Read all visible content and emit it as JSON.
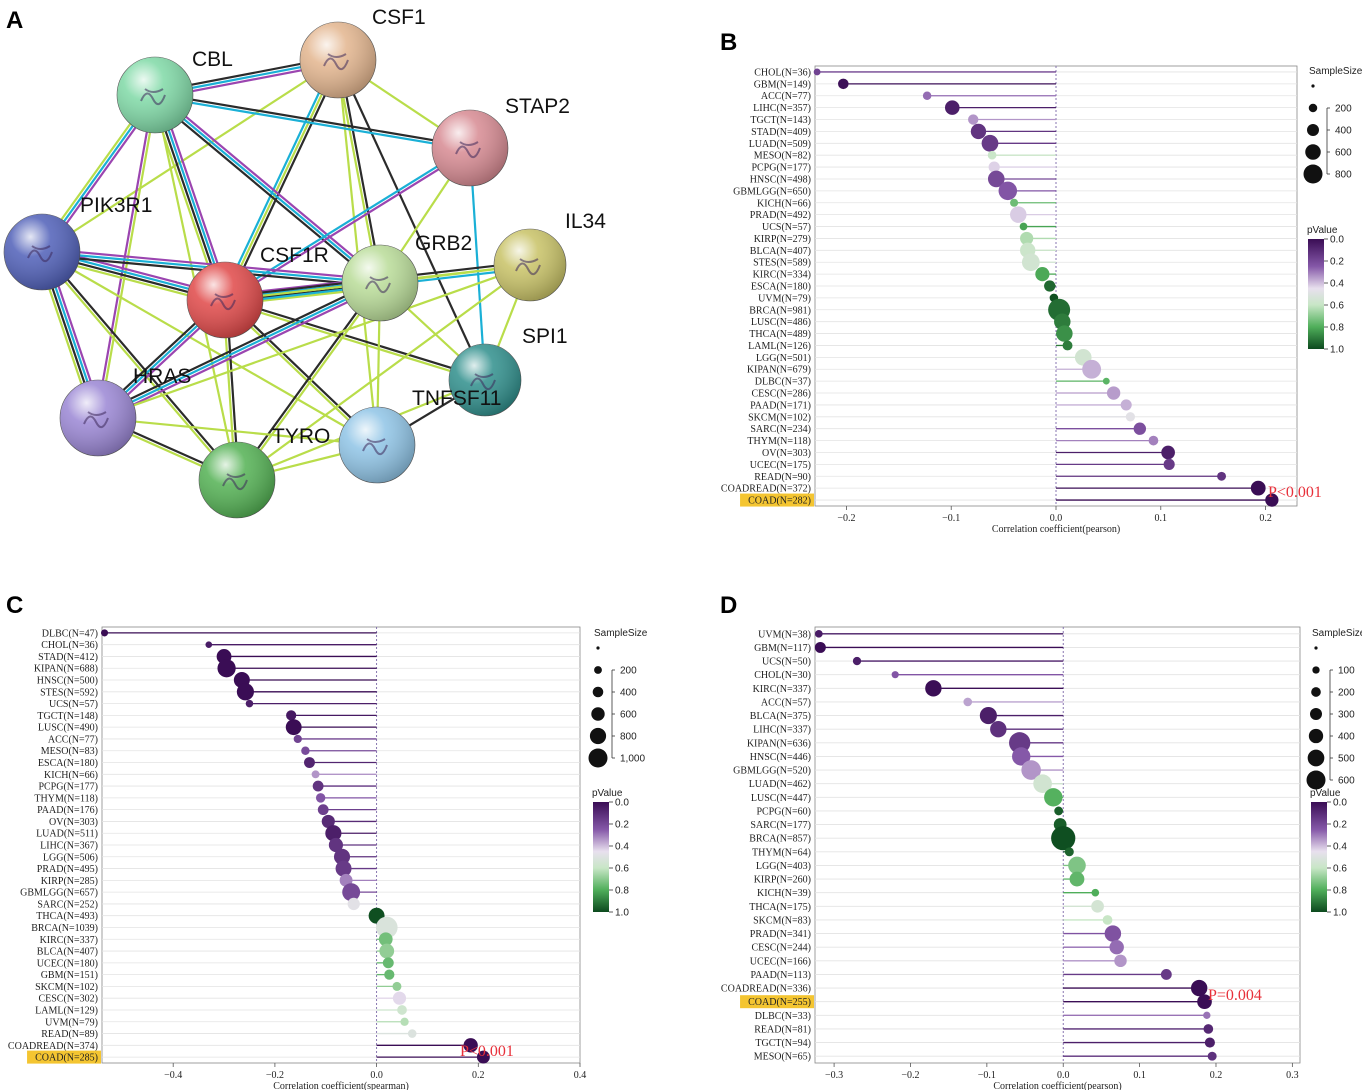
{
  "figure": {
    "panel_letters": {
      "a": "A",
      "b": "B",
      "c": "C",
      "d": "D"
    },
    "network": {
      "nodes": [
        {
          "id": "CSF1",
          "label": "CSF1",
          "color": "#e3b58e"
        },
        {
          "id": "CBL",
          "label": "CBL",
          "color": "#7fd9a6"
        },
        {
          "id": "STAP2",
          "label": "STAP2",
          "color": "#d78a92"
        },
        {
          "id": "PIK3R1",
          "label": "PIK3R1",
          "color": "#4f5fb8"
        },
        {
          "id": "CSF1R",
          "label": "CSF1R",
          "color": "#e04848"
        },
        {
          "id": "GRB2",
          "label": "GRB2",
          "color": "#b9dc98"
        },
        {
          "id": "IL34",
          "label": "IL34",
          "color": "#c8c266"
        },
        {
          "id": "SPI1",
          "label": "SPI1",
          "color": "#2f8f8c"
        },
        {
          "id": "HRAS",
          "label": "HRAS",
          "color": "#9a86d4"
        },
        {
          "id": "TNFSF11",
          "label": "TNFSF11",
          "color": "#8fc4e6"
        },
        {
          "id": "TYRO",
          "label": "TYRO",
          "color": "#53b153"
        }
      ],
      "edge_colors": {
        "black": "#2b2b2b",
        "cyan": "#1ab0d6",
        "purple": "#9b45b0",
        "green": "#b9dd4a"
      }
    }
  },
  "chart_data": [
    {
      "panel": "B",
      "type": "lollipop",
      "xlabel": "Correlation coefficient(pearson)",
      "xlim": [
        -0.23,
        0.23
      ],
      "xticks": [
        -0.2,
        -0.1,
        0.0,
        0.1,
        0.2
      ],
      "xtick_labels": [
        "−0.2",
        "−0.1",
        "0.0",
        "0.1",
        "0.2"
      ],
      "annotation": "P<0.001",
      "highlight": "COAD(N=282)",
      "size_legend": {
        "title": "SampleSize",
        "labels": [
          "200",
          "400",
          "600",
          "800"
        ]
      },
      "color_legend": {
        "title": "pValue",
        "labels": [
          "0.0",
          "0.2",
          "0.4",
          "0.6",
          "0.8",
          "1.0"
        ]
      },
      "rows": [
        {
          "label": "CHOL(N=36)",
          "n": 36,
          "r": -0.228,
          "p": 0.18
        },
        {
          "label": "GBM(N=149)",
          "n": 149,
          "r": -0.203,
          "p": 0.01
        },
        {
          "label": "ACC(N=77)",
          "n": 77,
          "r": -0.123,
          "p": 0.28
        },
        {
          "label": "LIHC(N=357)",
          "n": 357,
          "r": -0.099,
          "p": 0.06
        },
        {
          "label": "TGCT(N=143)",
          "n": 143,
          "r": -0.079,
          "p": 0.34
        },
        {
          "label": "STAD(N=409)",
          "n": 409,
          "r": -0.074,
          "p": 0.13
        },
        {
          "label": "LUAD(N=509)",
          "n": 509,
          "r": -0.063,
          "p": 0.15
        },
        {
          "label": "MESO(N=82)",
          "n": 82,
          "r": -0.061,
          "p": 0.59
        },
        {
          "label": "PCPG(N=177)",
          "n": 177,
          "r": -0.059,
          "p": 0.43
        },
        {
          "label": "HNSC(N=498)",
          "n": 498,
          "r": -0.057,
          "p": 0.2
        },
        {
          "label": "GBMLGG(N=650)",
          "n": 650,
          "r": -0.046,
          "p": 0.24
        },
        {
          "label": "KICH(N=66)",
          "n": 66,
          "r": -0.04,
          "p": 0.75
        },
        {
          "label": "PRAD(N=492)",
          "n": 492,
          "r": -0.036,
          "p": 0.42
        },
        {
          "label": "UCS(N=57)",
          "n": 57,
          "r": -0.031,
          "p": 0.82
        },
        {
          "label": "KIRP(N=279)",
          "n": 279,
          "r": -0.028,
          "p": 0.64
        },
        {
          "label": "BLCA(N=407)",
          "n": 407,
          "r": -0.027,
          "p": 0.58
        },
        {
          "label": "STES(N=589)",
          "n": 589,
          "r": -0.024,
          "p": 0.56
        },
        {
          "label": "KIRC(N=334)",
          "n": 334,
          "r": -0.013,
          "p": 0.81
        },
        {
          "label": "ESCA(N=180)",
          "n": 180,
          "r": -0.006,
          "p": 0.94
        },
        {
          "label": "UVM(N=79)",
          "n": 79,
          "r": -0.002,
          "p": 0.99
        },
        {
          "label": "BRCA(N=981)",
          "n": 981,
          "r": 0.003,
          "p": 0.93
        },
        {
          "label": "LUSC(N=486)",
          "n": 486,
          "r": 0.006,
          "p": 0.9
        },
        {
          "label": "THCA(N=489)",
          "n": 489,
          "r": 0.008,
          "p": 0.86
        },
        {
          "label": "LAML(N=126)",
          "n": 126,
          "r": 0.011,
          "p": 0.9
        },
        {
          "label": "LGG(N=501)",
          "n": 501,
          "r": 0.026,
          "p": 0.56
        },
        {
          "label": "KIPAN(N=679)",
          "n": 679,
          "r": 0.034,
          "p": 0.38
        },
        {
          "label": "DLBC(N=37)",
          "n": 37,
          "r": 0.048,
          "p": 0.78
        },
        {
          "label": "CESC(N=286)",
          "n": 286,
          "r": 0.055,
          "p": 0.35
        },
        {
          "label": "PAAD(N=171)",
          "n": 171,
          "r": 0.067,
          "p": 0.38
        },
        {
          "label": "SKCM(N=102)",
          "n": 102,
          "r": 0.071,
          "p": 0.48
        },
        {
          "label": "SARC(N=234)",
          "n": 234,
          "r": 0.08,
          "p": 0.22
        },
        {
          "label": "THYM(N=118)",
          "n": 118,
          "r": 0.093,
          "p": 0.31
        },
        {
          "label": "OV(N=303)",
          "n": 303,
          "r": 0.107,
          "p": 0.06
        },
        {
          "label": "UCEC(N=175)",
          "n": 175,
          "r": 0.108,
          "p": 0.15
        },
        {
          "label": "READ(N=90)",
          "n": 90,
          "r": 0.158,
          "p": 0.13
        },
        {
          "label": "COADREAD(N=372)",
          "n": 372,
          "r": 0.193,
          "p": 0.0002
        },
        {
          "label": "COAD(N=282)",
          "n": 282,
          "r": 0.206,
          "p": 0.0005
        }
      ]
    },
    {
      "panel": "C",
      "type": "lollipop",
      "xlabel": "Correlation coefficient(spearman)",
      "xlim": [
        -0.54,
        0.4
      ],
      "xticks": [
        -0.4,
        -0.2,
        0.0,
        0.2,
        0.4
      ],
      "xtick_labels": [
        "−0.4",
        "−0.2",
        "0.0",
        "0.2",
        "0.4"
      ],
      "annotation": "P<0.001",
      "highlight": "COAD(N=285)",
      "size_legend": {
        "title": "SampleSize",
        "labels": [
          "200",
          "400",
          "600",
          "800",
          "1,000"
        ]
      },
      "color_legend": {
        "title": "pValue",
        "labels": [
          "0.0",
          "0.2",
          "0.4",
          "0.6",
          "0.8",
          "1.0"
        ]
      },
      "rows": [
        {
          "label": "DLBC(N=47)",
          "n": 47,
          "r": -0.535,
          "p": 0.0001
        },
        {
          "label": "CHOL(N=36)",
          "n": 36,
          "r": -0.33,
          "p": 0.05
        },
        {
          "label": "STAD(N=412)",
          "n": 412,
          "r": -0.3,
          "p": 0.0
        },
        {
          "label": "KIPAN(N=688)",
          "n": 688,
          "r": -0.295,
          "p": 0.0
        },
        {
          "label": "HNSC(N=500)",
          "n": 500,
          "r": -0.265,
          "p": 0.0
        },
        {
          "label": "STES(N=592)",
          "n": 592,
          "r": -0.258,
          "p": 0.0
        },
        {
          "label": "UCS(N=57)",
          "n": 57,
          "r": -0.25,
          "p": 0.06
        },
        {
          "label": "TGCT(N=148)",
          "n": 148,
          "r": -0.168,
          "p": 0.04
        },
        {
          "label": "LUSC(N=490)",
          "n": 490,
          "r": -0.163,
          "p": 0.0003
        },
        {
          "label": "ACC(N=77)",
          "n": 77,
          "r": -0.155,
          "p": 0.18
        },
        {
          "label": "MESO(N=83)",
          "n": 83,
          "r": -0.14,
          "p": 0.21
        },
        {
          "label": "ESCA(N=180)",
          "n": 180,
          "r": -0.132,
          "p": 0.08
        },
        {
          "label": "KICH(N=66)",
          "n": 66,
          "r": -0.12,
          "p": 0.34
        },
        {
          "label": "PCPG(N=177)",
          "n": 177,
          "r": -0.115,
          "p": 0.13
        },
        {
          "label": "THYM(N=118)",
          "n": 118,
          "r": -0.11,
          "p": 0.24
        },
        {
          "label": "PAAD(N=176)",
          "n": 176,
          "r": -0.105,
          "p": 0.17
        },
        {
          "label": "OV(N=303)",
          "n": 303,
          "r": -0.095,
          "p": 0.1
        },
        {
          "label": "LUAD(N=511)",
          "n": 511,
          "r": -0.085,
          "p": 0.06
        },
        {
          "label": "LIHC(N=367)",
          "n": 367,
          "r": -0.08,
          "p": 0.13
        },
        {
          "label": "LGG(N=506)",
          "n": 506,
          "r": -0.068,
          "p": 0.13
        },
        {
          "label": "PRAD(N=495)",
          "n": 495,
          "r": -0.065,
          "p": 0.15
        },
        {
          "label": "KIRP(N=285)",
          "n": 285,
          "r": -0.06,
          "p": 0.31
        },
        {
          "label": "GBMLGG(N=657)",
          "n": 657,
          "r": -0.05,
          "p": 0.2
        },
        {
          "label": "SARC(N=252)",
          "n": 252,
          "r": -0.045,
          "p": 0.48
        },
        {
          "label": "THCA(N=493)",
          "n": 493,
          "r": 0.0,
          "p": 0.99
        },
        {
          "label": "BRCA(N=1039)",
          "n": 1039,
          "r": 0.02,
          "p": 0.52
        },
        {
          "label": "KIRC(N=337)",
          "n": 337,
          "r": 0.018,
          "p": 0.74
        },
        {
          "label": "BLCA(N=407)",
          "n": 407,
          "r": 0.02,
          "p": 0.69
        },
        {
          "label": "UCEC(N=180)",
          "n": 180,
          "r": 0.023,
          "p": 0.76
        },
        {
          "label": "GBM(N=151)",
          "n": 151,
          "r": 0.025,
          "p": 0.76
        },
        {
          "label": "SKCM(N=102)",
          "n": 102,
          "r": 0.04,
          "p": 0.69
        },
        {
          "label": "CESC(N=302)",
          "n": 302,
          "r": 0.045,
          "p": 0.44
        },
        {
          "label": "LAML(N=129)",
          "n": 129,
          "r": 0.05,
          "p": 0.57
        },
        {
          "label": "UVM(N=79)",
          "n": 79,
          "r": 0.055,
          "p": 0.63
        },
        {
          "label": "READ(N=89)",
          "n": 89,
          "r": 0.07,
          "p": 0.51
        },
        {
          "label": "COADREAD(N=374)",
          "n": 374,
          "r": 0.185,
          "p": 0.0003
        },
        {
          "label": "COAD(N=285)",
          "n": 285,
          "r": 0.21,
          "p": 0.0004
        }
      ]
    },
    {
      "panel": "D",
      "type": "lollipop",
      "xlabel": "Correlation coefficient(pearson)",
      "xlim": [
        -0.325,
        0.31
      ],
      "xticks": [
        -0.3,
        -0.2,
        -0.1,
        0.0,
        0.1,
        0.2,
        0.3
      ],
      "xtick_labels": [
        "−0.3",
        "−0.2",
        "−0.1",
        "0.0",
        "0.1",
        "0.2",
        "0.3"
      ],
      "annotation": "P=0.004",
      "highlight": "COAD(N=255)",
      "size_legend": {
        "title": "SampleSize",
        "labels": [
          "100",
          "200",
          "300",
          "400",
          "500",
          "600"
        ]
      },
      "color_legend": {
        "title": "pValue",
        "labels": [
          "0.0",
          "0.2",
          "0.4",
          "0.6",
          "0.8",
          "1.0"
        ]
      },
      "rows": [
        {
          "label": "UVM(N=38)",
          "n": 38,
          "r": -0.32,
          "p": 0.05
        },
        {
          "label": "GBM(N=117)",
          "n": 117,
          "r": -0.318,
          "p": 0.0005
        },
        {
          "label": "UCS(N=50)",
          "n": 50,
          "r": -0.27,
          "p": 0.06
        },
        {
          "label": "CHOL(N=30)",
          "n": 30,
          "r": -0.22,
          "p": 0.24
        },
        {
          "label": "KIRC(N=337)",
          "n": 337,
          "r": -0.17,
          "p": 0.002
        },
        {
          "label": "ACC(N=57)",
          "n": 57,
          "r": -0.125,
          "p": 0.36
        },
        {
          "label": "BLCA(N=375)",
          "n": 375,
          "r": -0.098,
          "p": 0.06
        },
        {
          "label": "LIHC(N=337)",
          "n": 337,
          "r": -0.085,
          "p": 0.12
        },
        {
          "label": "KIPAN(N=636)",
          "n": 636,
          "r": -0.057,
          "p": 0.15
        },
        {
          "label": "HNSC(N=446)",
          "n": 446,
          "r": -0.055,
          "p": 0.25
        },
        {
          "label": "GBMLGG(N=520)",
          "n": 520,
          "r": -0.042,
          "p": 0.34
        },
        {
          "label": "LUAD(N=462)",
          "n": 462,
          "r": -0.027,
          "p": 0.56
        },
        {
          "label": "LUSC(N=447)",
          "n": 447,
          "r": -0.013,
          "p": 0.79
        },
        {
          "label": "PCPG(N=60)",
          "n": 60,
          "r": -0.006,
          "p": 0.96
        },
        {
          "label": "SARC(N=177)",
          "n": 177,
          "r": -0.004,
          "p": 0.96
        },
        {
          "label": "BRCA(N=857)",
          "n": 857,
          "r": 0.0,
          "p": 0.99
        },
        {
          "label": "THYM(N=64)",
          "n": 64,
          "r": 0.008,
          "p": 0.95
        },
        {
          "label": "LGG(N=403)",
          "n": 403,
          "r": 0.018,
          "p": 0.72
        },
        {
          "label": "KIRP(N=260)",
          "n": 260,
          "r": 0.018,
          "p": 0.77
        },
        {
          "label": "KICH(N=39)",
          "n": 39,
          "r": 0.042,
          "p": 0.8
        },
        {
          "label": "THCA(N=175)",
          "n": 175,
          "r": 0.045,
          "p": 0.55
        },
        {
          "label": "SKCM(N=83)",
          "n": 83,
          "r": 0.058,
          "p": 0.6
        },
        {
          "label": "PRAD(N=341)",
          "n": 341,
          "r": 0.065,
          "p": 0.23
        },
        {
          "label": "CESC(N=244)",
          "n": 244,
          "r": 0.07,
          "p": 0.28
        },
        {
          "label": "UCEC(N=166)",
          "n": 166,
          "r": 0.075,
          "p": 0.34
        },
        {
          "label": "PAAD(N=113)",
          "n": 113,
          "r": 0.135,
          "p": 0.15
        },
        {
          "label": "COADREAD(N=336)",
          "n": 336,
          "r": 0.178,
          "p": 0.001
        },
        {
          "label": "COAD(N=255)",
          "n": 255,
          "r": 0.185,
          "p": 0.004
        },
        {
          "label": "DLBC(N=33)",
          "n": 33,
          "r": 0.188,
          "p": 0.29
        },
        {
          "label": "READ(N=81)",
          "n": 81,
          "r": 0.19,
          "p": 0.09
        },
        {
          "label": "TGCT(N=94)",
          "n": 94,
          "r": 0.192,
          "p": 0.06
        },
        {
          "label": "MESO(N=65)",
          "n": 65,
          "r": 0.195,
          "p": 0.12
        }
      ]
    }
  ]
}
